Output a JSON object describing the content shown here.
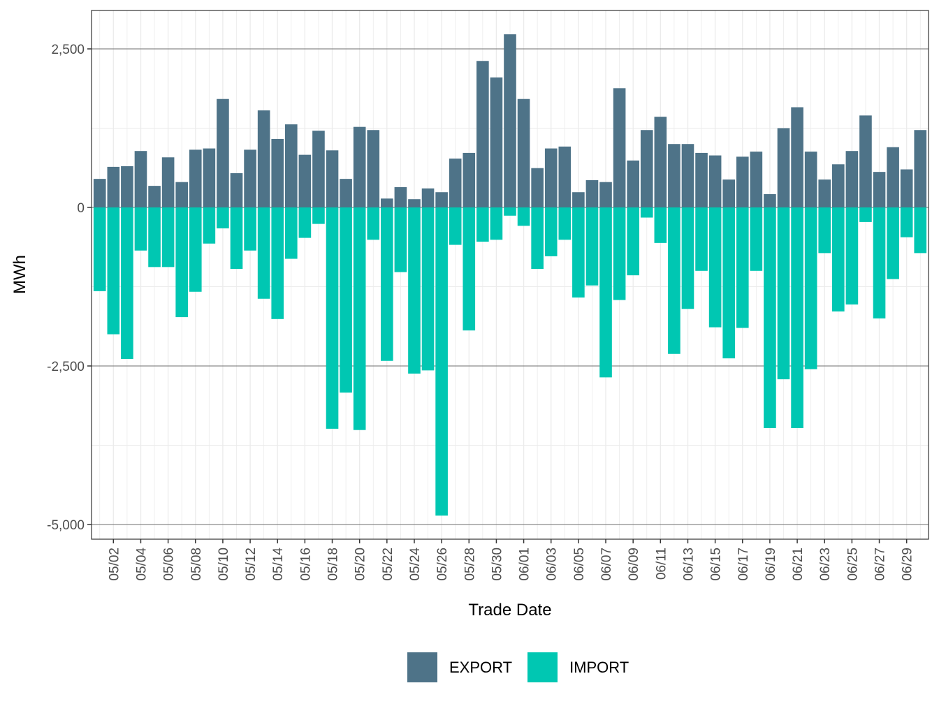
{
  "chart_data": {
    "type": "bar",
    "stacked": true,
    "title": "",
    "xlabel": "Trade Date",
    "ylabel": "MWh",
    "ylim": [
      -5400,
      2800
    ],
    "yticks": [
      -5000,
      -2500,
      0,
      2500
    ],
    "ytick_labels": [
      "-5,000",
      "-2,500",
      "0",
      "2,500"
    ],
    "grid": true,
    "legend_position": "bottom",
    "categories": [
      "05/01",
      "05/02",
      "05/03",
      "05/04",
      "05/05",
      "05/06",
      "05/07",
      "05/08",
      "05/09",
      "05/10",
      "05/11",
      "05/12",
      "05/13",
      "05/14",
      "05/15",
      "05/16",
      "05/17",
      "05/18",
      "05/19",
      "05/20",
      "05/21",
      "05/22",
      "05/23",
      "05/24",
      "05/25",
      "05/26",
      "05/27",
      "05/28",
      "05/29",
      "05/30",
      "05/31",
      "06/01",
      "06/02",
      "06/03",
      "06/04",
      "06/05",
      "06/06",
      "06/07",
      "06/08",
      "06/09",
      "06/10",
      "06/11",
      "06/12",
      "06/13",
      "06/14",
      "06/15",
      "06/16",
      "06/17",
      "06/18",
      "06/19",
      "06/20",
      "06/21",
      "06/22",
      "06/23",
      "06/24",
      "06/25",
      "06/26",
      "06/27",
      "06/28",
      "06/29",
      "06/30"
    ],
    "xtick_labels": [
      "05/02",
      "05/04",
      "05/06",
      "05/08",
      "05/10",
      "05/12",
      "05/14",
      "05/16",
      "05/18",
      "05/20",
      "05/22",
      "05/24",
      "05/26",
      "05/28",
      "05/30",
      "06/01",
      "06/03",
      "06/05",
      "06/07",
      "06/09",
      "06/11",
      "06/13",
      "06/15",
      "06/17",
      "06/19",
      "06/21",
      "06/23",
      "06/25",
      "06/27",
      "06/29"
    ],
    "series": [
      {
        "name": "EXPORT",
        "color": "#4e7388",
        "values": [
          450,
          640,
          650,
          890,
          340,
          790,
          400,
          910,
          930,
          1710,
          540,
          910,
          1530,
          1080,
          1310,
          830,
          1210,
          900,
          450,
          1270,
          1220,
          140,
          320,
          130,
          300,
          240,
          770,
          860,
          2310,
          2050,
          2730,
          1710,
          620,
          930,
          960,
          240,
          430,
          400,
          1880,
          740,
          1220,
          1430,
          1000,
          1000,
          860,
          820,
          440,
          800,
          880,
          210,
          1250,
          1580,
          880,
          440,
          680,
          890,
          1450,
          560,
          950,
          600,
          1220
        ]
      },
      {
        "name": "IMPORT",
        "color": "#00c7b2",
        "values": [
          -1320,
          -2000,
          -2390,
          -680,
          -940,
          -940,
          -1730,
          -1330,
          -570,
          -330,
          -970,
          -680,
          -1440,
          -1760,
          -810,
          -480,
          -260,
          -3490,
          -2920,
          -3510,
          -510,
          -2420,
          -1020,
          -2620,
          -2570,
          -4860,
          -590,
          -1940,
          -540,
          -510,
          -130,
          -290,
          -970,
          -770,
          -510,
          -1420,
          -1230,
          -2680,
          -1460,
          -1070,
          -160,
          -560,
          -2310,
          -1600,
          -1000,
          -1890,
          -2380,
          -1900,
          -1000,
          -3480,
          -2710,
          -3480,
          -2550,
          -720,
          -1640,
          -1530,
          -230,
          -1750,
          -1130,
          -470,
          -720
        ]
      }
    ]
  }
}
